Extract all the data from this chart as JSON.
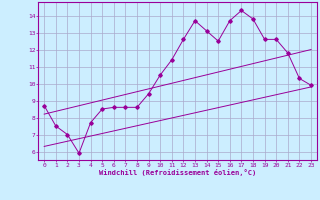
{
  "xlabel": "Windchill (Refroidissement éolien,°C)",
  "ylabel": "",
  "bg_color": "#cceeff",
  "line_color": "#990099",
  "grid_color": "#aaaacc",
  "x_ticks": [
    0,
    1,
    2,
    3,
    4,
    5,
    6,
    7,
    8,
    9,
    10,
    11,
    12,
    13,
    14,
    15,
    16,
    17,
    18,
    19,
    20,
    21,
    22,
    23
  ],
  "y_ticks": [
    6,
    7,
    8,
    9,
    10,
    11,
    12,
    13,
    14
  ],
  "xlim": [
    -0.5,
    23.5
  ],
  "ylim": [
    5.5,
    14.8
  ],
  "series": [
    {
      "x": [
        0,
        1,
        2,
        3,
        4,
        5,
        6,
        7,
        8,
        9,
        10,
        11,
        12,
        13,
        14,
        15,
        16,
        17,
        18,
        19,
        20,
        21,
        22,
        23
      ],
      "y": [
        8.7,
        7.5,
        7.0,
        5.9,
        7.7,
        8.5,
        8.6,
        8.6,
        8.6,
        9.4,
        10.5,
        11.4,
        12.6,
        13.7,
        13.1,
        12.5,
        13.7,
        14.3,
        13.8,
        12.6,
        12.6,
        11.8,
        10.3,
        9.9
      ]
    },
    {
      "x": [
        0,
        23
      ],
      "y": [
        8.2,
        12.0
      ]
    },
    {
      "x": [
        0,
        23
      ],
      "y": [
        6.3,
        9.8
      ]
    }
  ]
}
